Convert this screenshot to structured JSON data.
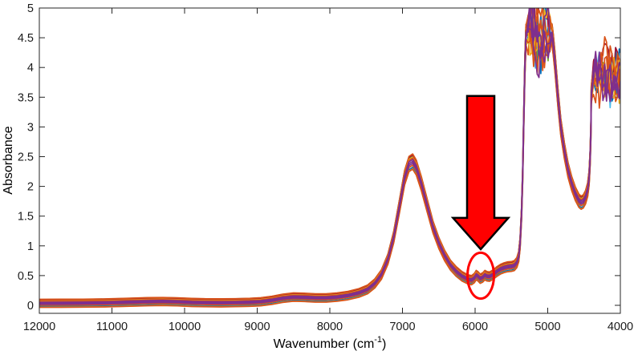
{
  "figure": {
    "background": "#ffffff",
    "axes_color": "#262626"
  },
  "chart_data": {
    "type": "line",
    "title": "",
    "xlabel": {
      "main": "Wavenumber (cm",
      "sup": "-1",
      "close": ")"
    },
    "ylabel": "Absorbance",
    "x_ticks": [
      12000,
      11000,
      10000,
      9000,
      8000,
      7000,
      6000,
      5000,
      4000
    ],
    "y_ticks": [
      0,
      0.5,
      1,
      1.5,
      2,
      2.5,
      3,
      3.5,
      4,
      4.5,
      5
    ],
    "xlim": [
      12000,
      4000
    ],
    "x_axis_reversed": true,
    "ylim": [
      -0.135,
      5
    ],
    "grid": false,
    "legend": "none",
    "palette": {
      "blue": "#0072BD",
      "orange": "#D95319",
      "yellow": "#EDB120",
      "purple": "#7E2F8E",
      "green": "#77AC30",
      "cyan": "#4DBEEE",
      "dark_red": "#A2142F"
    },
    "base_curve": [
      [
        12000,
        0.035
      ],
      [
        11700,
        0.036
      ],
      [
        11400,
        0.038
      ],
      [
        11100,
        0.042
      ],
      [
        10800,
        0.052
      ],
      [
        10500,
        0.063
      ],
      [
        10300,
        0.066
      ],
      [
        10100,
        0.06
      ],
      [
        9900,
        0.05
      ],
      [
        9700,
        0.045
      ],
      [
        9500,
        0.043
      ],
      [
        9300,
        0.046
      ],
      [
        9100,
        0.052
      ],
      [
        8950,
        0.062
      ],
      [
        8800,
        0.085
      ],
      [
        8650,
        0.12
      ],
      [
        8500,
        0.14
      ],
      [
        8350,
        0.135
      ],
      [
        8200,
        0.126
      ],
      [
        8050,
        0.126
      ],
      [
        7900,
        0.14
      ],
      [
        7750,
        0.166
      ],
      [
        7600,
        0.21
      ],
      [
        7480,
        0.27
      ],
      [
        7380,
        0.37
      ],
      [
        7290,
        0.52
      ],
      [
        7200,
        0.78
      ],
      [
        7120,
        1.15
      ],
      [
        7040,
        1.68
      ],
      [
        6970,
        2.15
      ],
      [
        6910,
        2.38
      ],
      [
        6860,
        2.42
      ],
      [
        6810,
        2.32
      ],
      [
        6740,
        2.05
      ],
      [
        6660,
        1.68
      ],
      [
        6580,
        1.32
      ],
      [
        6500,
        1.05
      ],
      [
        6420,
        0.84
      ],
      [
        6340,
        0.68
      ],
      [
        6260,
        0.57
      ],
      [
        6180,
        0.49
      ],
      [
        6100,
        0.44
      ],
      [
        6050,
        0.425
      ],
      [
        6010,
        0.46
      ],
      [
        5985,
        0.51
      ],
      [
        5960,
        0.49
      ],
      [
        5930,
        0.45
      ],
      [
        5895,
        0.47
      ],
      [
        5865,
        0.51
      ],
      [
        5835,
        0.49
      ],
      [
        5800,
        0.485
      ],
      [
        5750,
        0.52
      ],
      [
        5700,
        0.57
      ],
      [
        5650,
        0.61
      ],
      [
        5600,
        0.635
      ],
      [
        5550,
        0.65
      ],
      [
        5500,
        0.655
      ],
      [
        5460,
        0.67
      ],
      [
        5425,
        0.72
      ],
      [
        5400,
        0.82
      ],
      [
        5380,
        1.05
      ],
      [
        5360,
        1.55
      ],
      [
        5345,
        2.2
      ],
      [
        5330,
        3.1
      ],
      [
        5315,
        4.0
      ],
      [
        5300,
        4.55
      ],
      [
        4940,
        4.55
      ],
      [
        4925,
        4.4
      ],
      [
        4900,
        4.1
      ],
      [
        4860,
        3.5
      ],
      [
        4820,
        3.0
      ],
      [
        4770,
        2.6
      ],
      [
        4720,
        2.28
      ],
      [
        4670,
        2.05
      ],
      [
        4620,
        1.88
      ],
      [
        4570,
        1.76
      ],
      [
        4540,
        1.73
      ],
      [
        4510,
        1.75
      ],
      [
        4480,
        1.82
      ],
      [
        4450,
        1.95
      ],
      [
        4430,
        2.15
      ],
      [
        4415,
        2.5
      ],
      [
        4405,
        2.95
      ],
      [
        4400,
        3.55
      ],
      [
        4370,
        3.85
      ],
      [
        4340,
        3.9
      ],
      [
        4000,
        3.9
      ]
    ],
    "noise_regions": [
      {
        "x_start": 5295,
        "x_end": 4940,
        "amplitude": 0.65
      },
      {
        "x_start": 4390,
        "x_end": 4000,
        "amplitude": 0.5
      }
    ],
    "lines": [
      {
        "color": "#4DBEEE",
        "offset": -0.9
      },
      {
        "color": "#77AC30",
        "offset": 0.75
      },
      {
        "color": "#0072BD",
        "offset": 0.95
      },
      {
        "color": "#A2142F",
        "offset": 0.85
      },
      {
        "color": "#0072BD",
        "offset": -0.8
      },
      {
        "color": "#EDB120",
        "offset": -1.0
      },
      {
        "color": "#D95319",
        "offset": 1.0
      },
      {
        "color": "#D95319",
        "offset": -1.05
      },
      {
        "color": "#EDB120",
        "offset": 0.55
      },
      {
        "color": "#D95319",
        "offset": 0.45
      },
      {
        "color": "#D95319",
        "offset": -0.5
      },
      {
        "color": "#7E2F8E",
        "offset": 0.25
      },
      {
        "color": "#7E2F8E",
        "offset": -0.25
      },
      {
        "color": "#7E2F8E",
        "offset": 0.0
      }
    ],
    "annotations": {
      "arrow": {
        "shape": "block-arrow-down",
        "fill": "#ff0000",
        "outline": "#000000",
        "center_wavenumber": 5923,
        "top_absorbance": 3.52,
        "head_top_absorbance": 1.47,
        "tip_absorbance": 0.943,
        "shaft_halfwidth_wavenumbers": 188,
        "head_halfwidth_wavenumbers": 381
      },
      "ellipse": {
        "stroke": "#ff0000",
        "center_wavenumber": 5923,
        "center_absorbance": 0.499,
        "rx_wavenumbers": 182,
        "ry_absorbance": 0.385
      }
    }
  }
}
